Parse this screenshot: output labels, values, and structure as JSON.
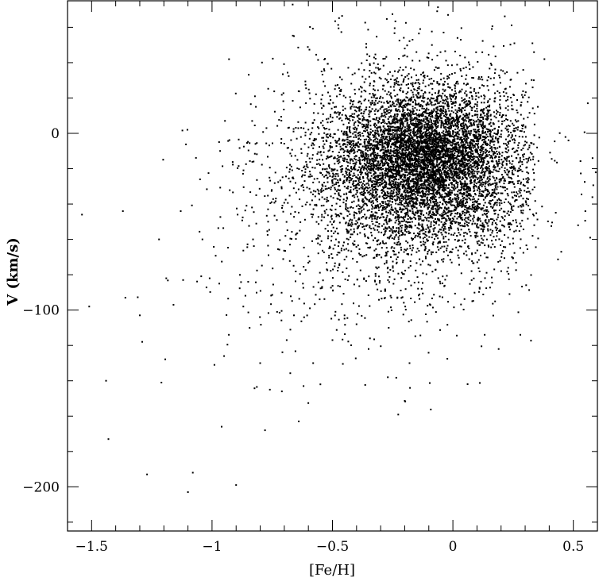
{
  "chart_data": {
    "type": "scatter",
    "title": "",
    "xlabel": "[Fe/H]",
    "ylabel": "V (km/s)",
    "xlim": [
      -1.6,
      0.6
    ],
    "ylim": [
      -225,
      75
    ],
    "x_major_ticks": [
      -1.5,
      -1,
      -0.5,
      0,
      0.5
    ],
    "x_tick_labels": [
      "−1.5",
      "−1",
      "−0.5",
      "0",
      "0.5"
    ],
    "x_minor_step": 0.1,
    "y_major_ticks": [
      -200,
      -100,
      0
    ],
    "y_tick_labels": [
      "−200",
      "−100",
      "0"
    ],
    "y_minor_step": 20,
    "grid": false,
    "legend": "none",
    "colors": {
      "marker": "#000000",
      "axes": "#000000",
      "background": "#ffffff"
    },
    "series": [
      {
        "marker": "dot",
        "description_points": "sparse outliers (read from image)",
        "points": [
          [
            -1.54,
            -46
          ],
          [
            -1.51,
            -98
          ],
          [
            -1.44,
            -140
          ],
          [
            -1.43,
            -173
          ],
          [
            -1.37,
            -44
          ],
          [
            -1.36,
            -93
          ],
          [
            -1.3,
            -103
          ],
          [
            -1.29,
            -118
          ],
          [
            -1.27,
            -193
          ],
          [
            -1.22,
            -60
          ],
          [
            -1.21,
            -141
          ],
          [
            -1.19,
            -82
          ],
          [
            -1.16,
            -97
          ],
          [
            -1.13,
            -44
          ],
          [
            -1.12,
            -83
          ],
          [
            -1.1,
            -203
          ],
          [
            -1.08,
            -192
          ],
          [
            -1.05,
            -26
          ],
          [
            -1.04,
            -60
          ],
          [
            -1.01,
            -82
          ],
          [
            -0.99,
            -131
          ],
          [
            -0.97,
            -85
          ],
          [
            -0.96,
            -166
          ],
          [
            -0.95,
            -126
          ],
          [
            -0.93,
            -114
          ],
          [
            -0.9,
            -199
          ],
          [
            -0.87,
            -98
          ],
          [
            -0.85,
            -84
          ],
          [
            -0.83,
            -60
          ],
          [
            -0.8,
            -130
          ],
          [
            -0.78,
            -168
          ],
          [
            -0.76,
            -145
          ],
          [
            -0.73,
            -101
          ],
          [
            -0.71,
            -146
          ],
          [
            -0.69,
            -117
          ],
          [
            -0.66,
            -103
          ],
          [
            -0.64,
            -163
          ],
          [
            -0.62,
            -143
          ],
          [
            -0.58,
            -130
          ],
          [
            -0.55,
            -142
          ],
          [
            -0.5,
            -117
          ],
          [
            -0.45,
            -103
          ],
          [
            -0.4,
            -108
          ],
          [
            -0.35,
            -122
          ],
          [
            -0.27,
            -138
          ],
          [
            -0.18,
            -130
          ],
          [
            0.19,
            -122
          ],
          [
            0.28,
            -114
          ],
          [
            0.45,
            -67
          ],
          [
            0.52,
            -52
          ],
          [
            0.55,
            -44
          ],
          [
            0.57,
            -59
          ],
          [
            0.56,
            17
          ],
          [
            -0.02,
            67
          ],
          [
            -0.66,
            55
          ],
          [
            0.38,
            42
          ],
          [
            0.48,
            -4
          ],
          [
            0.58,
            -14
          ],
          [
            -0.2,
            48
          ],
          [
            0.03,
            44
          ]
        ]
      }
    ],
    "clusters": [
      {
        "cx": -0.13,
        "cy": -12,
        "sx": 0.17,
        "sy": 17,
        "n": 4200
      },
      {
        "cx": -0.05,
        "cy": -17,
        "sx": 0.26,
        "sy": 28,
        "n": 2400
      },
      {
        "cx": -0.22,
        "cy": -30,
        "sx": 0.3,
        "sy": 36,
        "n": 1300
      },
      {
        "cx": -0.35,
        "cy": -45,
        "sx": 0.35,
        "sy": 42,
        "n": 450
      },
      {
        "cx": -0.1,
        "cy": -48,
        "sx": 0.2,
        "sy": 10,
        "n": 300
      }
    ]
  }
}
